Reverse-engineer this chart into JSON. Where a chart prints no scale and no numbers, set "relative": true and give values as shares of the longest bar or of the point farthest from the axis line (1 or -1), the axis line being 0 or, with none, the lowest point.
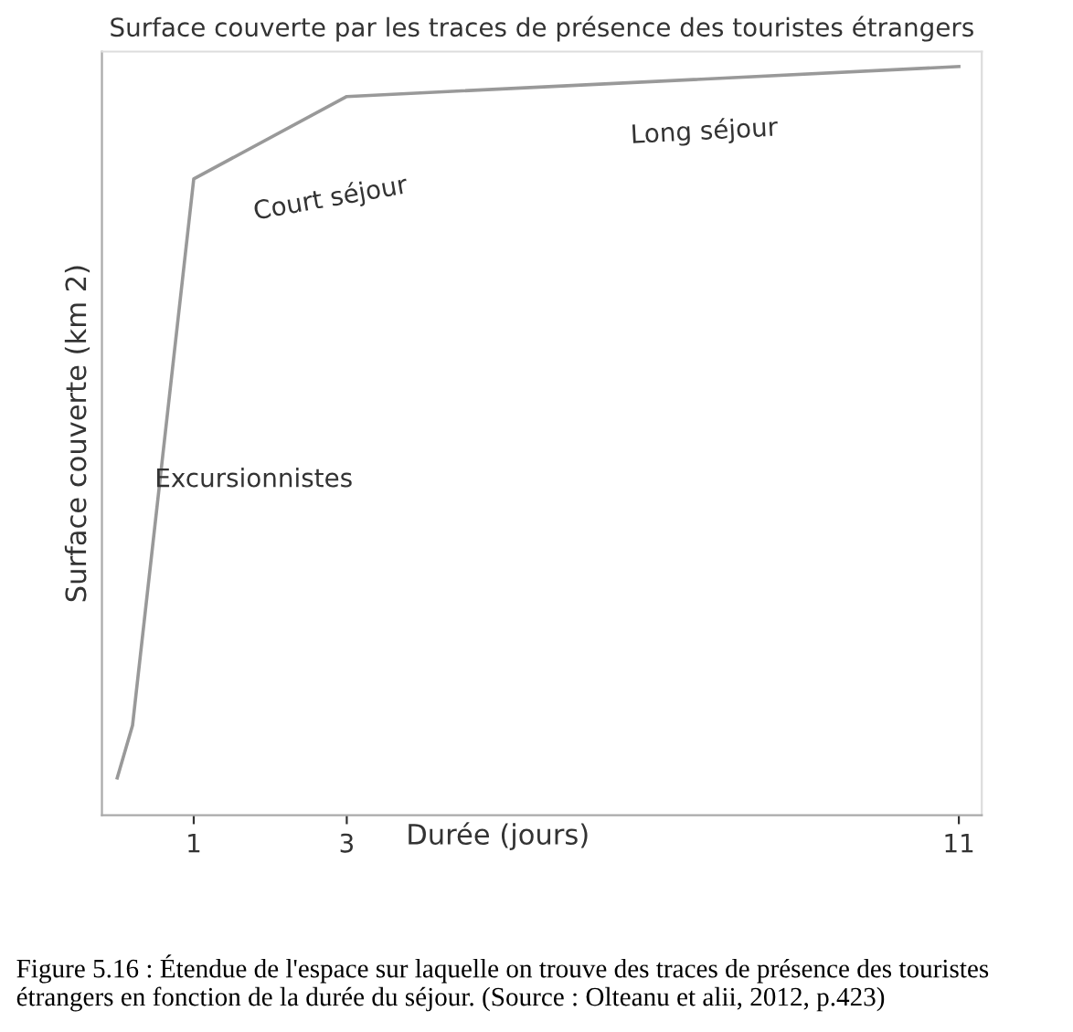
{
  "chart_data": {
    "type": "line",
    "title": "Surface couverte par les traces de présence des touristes étrangers",
    "xlabel": "Durée (jours)",
    "ylabel": "Surface couverte (km 2)",
    "relative": true,
    "x": [
      0,
      0.2,
      1,
      3,
      11
    ],
    "series": [
      {
        "color": "#999999",
        "values": [
          0.05,
          0.12,
          0.85,
          0.96,
          1.0
        ]
      }
    ],
    "xlim": [
      -0.2,
      11.3
    ],
    "xticks": [
      1,
      3,
      11
    ],
    "grid": false,
    "legend": false,
    "marker": "none",
    "line_style": "solid",
    "annotations": [
      "Excursionnistes",
      "Court séjour",
      "Long séjour",
      "Figure 5.16 : Étendue de l'espace sur laquelle on trouve des traces de présence des touristes étrangers en fonction de la durée du séjour. (Source : Olteanu et alii, 2012, p.423)"
    ]
  }
}
